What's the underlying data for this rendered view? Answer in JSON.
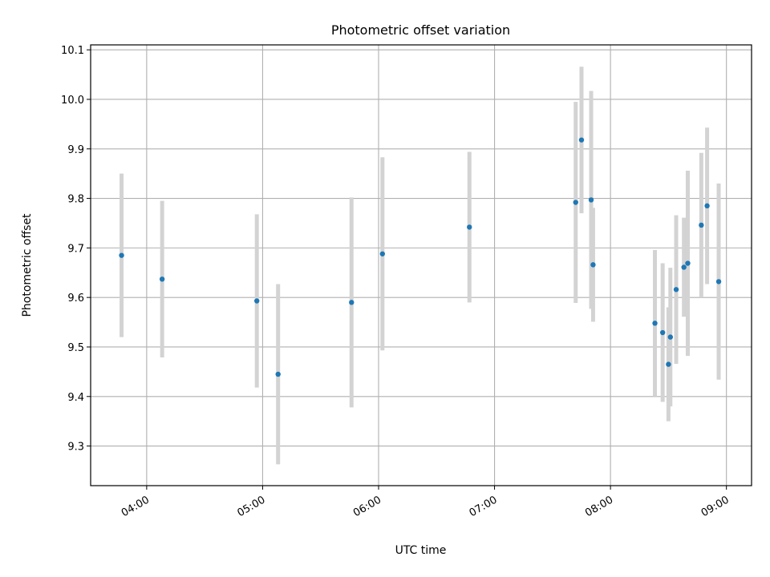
{
  "chart_data": {
    "type": "scatter",
    "title": "Photometric offset variation",
    "xlabel": "UTC time",
    "ylabel": "Photometric offset",
    "xlim": [
      "03:31",
      "09:13"
    ],
    "ylim": [
      9.22,
      10.11
    ],
    "grid": true,
    "x_ticks": [
      "04:00",
      "05:00",
      "06:00",
      "07:00",
      "08:00",
      "09:00"
    ],
    "y_ticks": [
      9.3,
      9.4,
      9.5,
      9.6,
      9.7,
      9.8,
      9.9,
      10.0,
      10.1
    ],
    "y_tick_labels": [
      "9.3",
      "9.4",
      "9.5",
      "9.6",
      "9.7",
      "9.8",
      "9.9",
      "10.0",
      "10.1"
    ],
    "marker_color": "#1f77b4",
    "errorbar_color": "#d3d3d3",
    "points": [
      {
        "x": "03:47",
        "y": 9.685,
        "yerr": 0.165
      },
      {
        "x": "04:08",
        "y": 9.637,
        "yerr": 0.158
      },
      {
        "x": "04:57",
        "y": 9.593,
        "yerr": 0.175
      },
      {
        "x": "05:08",
        "y": 9.445,
        "yerr": 0.182
      },
      {
        "x": "05:46",
        "y": 9.59,
        "yerr": 0.212
      },
      {
        "x": "06:02",
        "y": 9.688,
        "yerr": 0.195
      },
      {
        "x": "06:47",
        "y": 9.742,
        "yerr": 0.152
      },
      {
        "x": "07:42",
        "y": 9.792,
        "yerr": 0.203
      },
      {
        "x": "07:45",
        "y": 9.918,
        "yerr": 0.148
      },
      {
        "x": "07:50",
        "y": 9.797,
        "yerr": 0.22
      },
      {
        "x": "07:51",
        "y": 9.666,
        "yerr": 0.115
      },
      {
        "x": "08:23",
        "y": 9.548,
        "yerr": 0.148
      },
      {
        "x": "08:27",
        "y": 9.529,
        "yerr": 0.14
      },
      {
        "x": "08:30",
        "y": 9.465,
        "yerr": 0.115
      },
      {
        "x": "08:31",
        "y": 9.52,
        "yerr": 0.14
      },
      {
        "x": "08:34",
        "y": 9.616,
        "yerr": 0.15
      },
      {
        "x": "08:38",
        "y": 9.661,
        "yerr": 0.1
      },
      {
        "x": "08:40",
        "y": 9.669,
        "yerr": 0.187
      },
      {
        "x": "08:47",
        "y": 9.746,
        "yerr": 0.146
      },
      {
        "x": "08:50",
        "y": 9.785,
        "yerr": 0.158
      },
      {
        "x": "08:56",
        "y": 9.632,
        "yerr": 0.198
      }
    ]
  }
}
